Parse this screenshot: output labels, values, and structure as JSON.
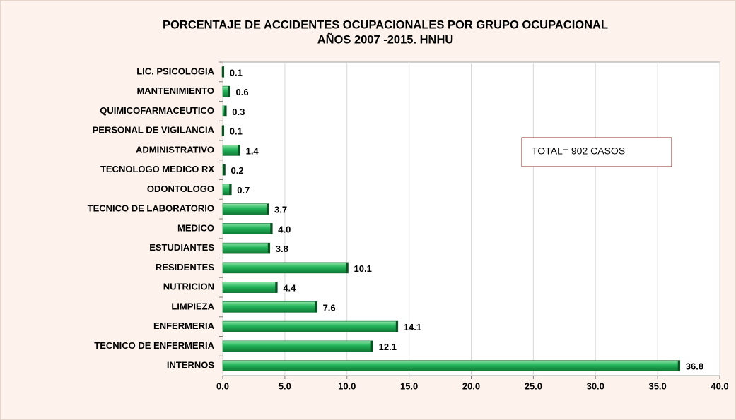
{
  "chart_data": {
    "type": "bar",
    "orientation": "horizontal",
    "title": [
      "PORCENTAJE DE ACCIDENTES OCUPACIONALES POR GRUPO OCUPACIONAL",
      "AÑOS 2007 -2015.  HNHU"
    ],
    "annotation": "TOTAL= 902 CASOS",
    "categories": [
      "LIC. PSICOLOGIA",
      "MANTENIMIENTO",
      "QUIMICOFARMACEUTICO",
      "PERSONAL DE VIGILANCIA",
      "ADMINISTRATIVO",
      "TECNOLOGO MEDICO RX",
      "ODONTOLOGO",
      "TECNICO DE LABORATORIO",
      "MEDICO",
      "ESTUDIANTES",
      "RESIDENTES",
      "NUTRICION",
      "LIMPIEZA",
      "ENFERMERIA",
      "TECNICO DE ENFERMERIA",
      "INTERNOS"
    ],
    "values": [
      0.1,
      0.6,
      0.3,
      0.1,
      1.4,
      0.2,
      0.7,
      3.7,
      4,
      3.8,
      10.1,
      4.4,
      7.6,
      14.1,
      12.1,
      36.8
    ],
    "value_labels": [
      "0.1",
      "0.6",
      "0.3",
      "0.1",
      "1.4",
      "0.2",
      "0.7",
      "3.7",
      "4.0",
      "3.8",
      "10.1",
      "4.4",
      "7.6",
      "14.1",
      "12.1",
      "36.8"
    ],
    "color": "#22b35a",
    "xlim": [
      0,
      40
    ],
    "xticks": [
      {
        "value": 0,
        "label": "0.0"
      },
      {
        "value": 5,
        "label": "5.0"
      },
      {
        "value": 10,
        "label": "10.0"
      },
      {
        "value": 15,
        "label": "15.0"
      },
      {
        "value": 20,
        "label": "20.0"
      },
      {
        "value": 25,
        "label": "25.0"
      },
      {
        "value": 30,
        "label": "30.0"
      },
      {
        "value": 35,
        "label": "35.0"
      },
      {
        "value": 40,
        "label": "40.0"
      }
    ],
    "grid": true
  }
}
